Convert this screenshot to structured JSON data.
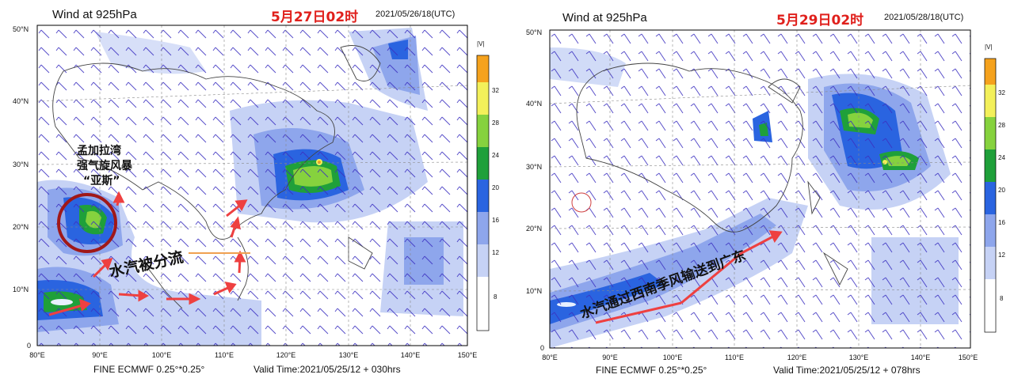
{
  "panels": [
    {
      "id": "left",
      "title": "Wind at 925hPa",
      "date_label": "5月27日02时",
      "init_time": "2021/05/26/18(UTC)",
      "model": "FINE ECMWF 0.25°*0.25°",
      "valid_time": "Valid Time:2021/05/25/12 + 030hrs",
      "lat_ticks": [
        "50°N",
        "40°N",
        "30°N",
        "20°N",
        "10°N",
        "0"
      ],
      "lon_ticks": [
        "80°E",
        "90°E",
        "100°E",
        "110°E",
        "120°E",
        "130°E",
        "140°E",
        "150°E"
      ],
      "colorbar_label": "|V|",
      "colorbar_ticks": [
        "32",
        "28",
        "24",
        "20",
        "16",
        "12",
        "8"
      ],
      "annotations": {
        "storm_line1": "孟加拉湾",
        "storm_line2": "强气旋风暴",
        "storm_name": "“亚斯”",
        "split_text": "水汽被分流"
      }
    },
    {
      "id": "right",
      "title": "Wind at 925hPa",
      "date_label": "5月29日02时",
      "init_time": "2021/05/28/18(UTC)",
      "model": "FINE ECMWF 0.25°*0.25°",
      "valid_time": "Valid Time:2021/05/25/12 + 078hrs",
      "lat_ticks": [
        "50°N",
        "40°N",
        "30°N",
        "20°N",
        "10°N",
        "0"
      ],
      "lon_ticks": [
        "80°E",
        "90°E",
        "100°E",
        "110°E",
        "120°E",
        "130°E",
        "140°E",
        "150°E"
      ],
      "colorbar_label": "|V|",
      "colorbar_ticks": [
        "32",
        "28",
        "24",
        "20",
        "16",
        "12",
        "8"
      ],
      "annotations": {
        "monsoon_text": "水汽通过西南季风输送到广东"
      }
    }
  ],
  "colors": {
    "level_8_12": "#c6d2f5",
    "level_12_16": "#8ea6ec",
    "level_16_20": "#2a64e0",
    "level_20_24": "#1fa03a",
    "level_24_28": "#86d23e",
    "level_28_32": "#f3f05a",
    "level_32_plus": "#f5a21d",
    "barb": "#3a2fc0",
    "arrow": "#ee4040",
    "storm_circle": "#a01818"
  }
}
